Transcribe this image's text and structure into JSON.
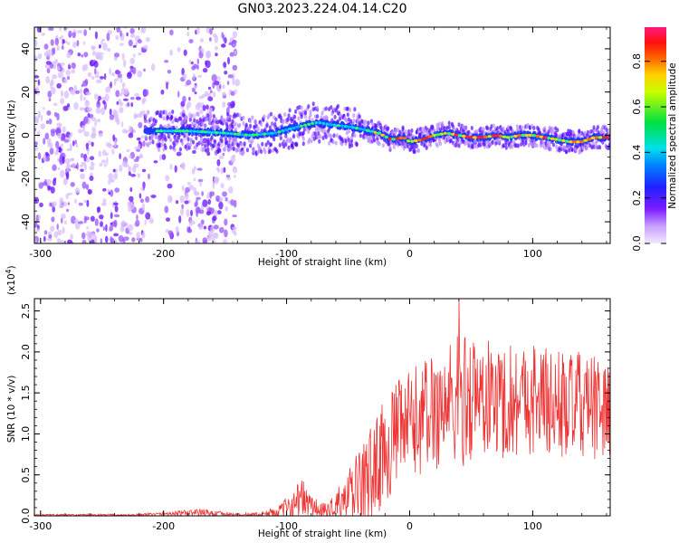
{
  "figure_title": "GN03.2023.224.04.14.C20",
  "chart_data": [
    {
      "type": "heatmap",
      "name": "spectrogram",
      "xlabel": "Height of straight line (km)",
      "ylabel": "Frequency (Hz)",
      "xlim": [
        -305,
        163
      ],
      "ylim": [
        -50,
        50
      ],
      "xticks": [
        -300,
        -200,
        -100,
        0,
        100
      ],
      "yticks": [
        -40,
        -20,
        0,
        20,
        40
      ],
      "colorbar": {
        "label": "Normalized spectral amplitude",
        "ticks": [
          0.0,
          0.2,
          0.4,
          0.6,
          0.8
        ],
        "range": [
          0.0,
          0.95
        ]
      },
      "ridge": {
        "x": [
          -215,
          -180,
          -150,
          -130,
          -110,
          -90,
          -75,
          -65,
          -50,
          -40,
          -25,
          -15,
          -5,
          0,
          10,
          20,
          30,
          40,
          50,
          60,
          70,
          80,
          90,
          100,
          110,
          120,
          130,
          140,
          150,
          163
        ],
        "freq": [
          2,
          2,
          1,
          0,
          1,
          4,
          6,
          5,
          4,
          3,
          1,
          -2,
          -1,
          -3,
          -2,
          0,
          1,
          0,
          -1,
          -1,
          0,
          -1,
          0,
          0,
          -1,
          -2,
          -3,
          -3,
          -1,
          -1
        ]
      },
      "noise_bands": [
        {
          "from": -305,
          "to": -215,
          "level": "high"
        },
        {
          "from": -215,
          "to": -185,
          "level": "low"
        },
        {
          "from": -185,
          "to": -140,
          "level": "high"
        }
      ]
    },
    {
      "type": "line",
      "name": "snr",
      "xlabel": "Height of straight line (km)",
      "ylabel": "SNR (10 * v/v)",
      "scale_label": "(x10",
      "scale_exp": "4",
      "scale_close": ")",
      "xlim": [
        -305,
        163
      ],
      "ylim": [
        0.0,
        2.65
      ],
      "xticks": [
        -300,
        -200,
        -100,
        0,
        100
      ],
      "yticks": [
        "0.0",
        "0.5",
        "1.0",
        "1.5",
        "2.0",
        "2.5"
      ],
      "series": [
        {
          "name": "SNR",
          "color": "#ee3333",
          "envelope": {
            "x": [
              -305,
              -220,
              -190,
              -170,
              -140,
              -120,
              -105,
              -95,
              -88,
              -80,
              -70,
              -60,
              -50,
              -40,
              -30,
              -20,
              -10,
              0,
              10,
              20,
              30,
              40,
              50,
              60,
              70,
              80,
              90,
              100,
              110,
              120,
              130,
              140,
              150,
              163
            ],
            "base": [
              0.01,
              0.01,
              0.03,
              0.04,
              0.01,
              0.02,
              0.06,
              0.15,
              0.22,
              0.12,
              0.05,
              0.1,
              0.2,
              0.35,
              0.55,
              0.8,
              1.0,
              1.1,
              1.2,
              1.3,
              1.35,
              1.4,
              1.45,
              1.45,
              1.4,
              1.4,
              1.45,
              1.45,
              1.4,
              1.35,
              1.35,
              1.35,
              1.3,
              1.3
            ],
            "spread": [
              0.01,
              0.015,
              0.03,
              0.05,
              0.02,
              0.03,
              0.08,
              0.18,
              0.25,
              0.15,
              0.1,
              0.2,
              0.35,
              0.5,
              0.6,
              0.65,
              0.65,
              0.7,
              0.7,
              0.75,
              0.8,
              0.85,
              0.8,
              0.75,
              0.7,
              0.75,
              0.7,
              0.7,
              0.7,
              0.7,
              0.65,
              0.65,
              0.65,
              0.6
            ]
          },
          "peak": {
            "x": 40,
            "y": 2.65
          }
        }
      ]
    }
  ]
}
